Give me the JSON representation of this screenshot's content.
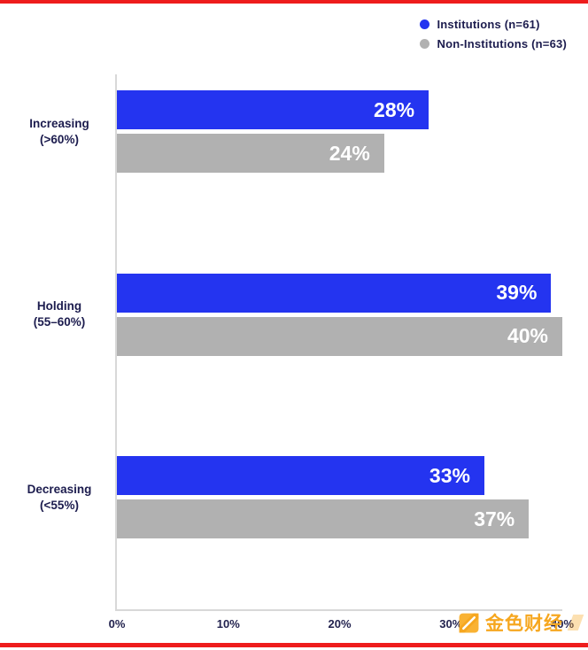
{
  "legend": {
    "items": [
      {
        "label": "Institutions (n=61)"
      },
      {
        "label": "Non-Institutions (n=63)"
      }
    ]
  },
  "chart_data": {
    "type": "bar",
    "orientation": "horizontal",
    "title": "",
    "categories": [
      "Increasing (>60%)",
      "Holding (55–60%)",
      "Decreasing (<55%)"
    ],
    "series": [
      {
        "name": "Institutions (n=61)",
        "color": "#2434f0",
        "values": [
          28,
          39,
          33
        ]
      },
      {
        "name": "Non-Institutions (n=63)",
        "color": "#b1b1b1",
        "values": [
          24,
          40,
          37
        ]
      }
    ],
    "xlim": [
      0,
      40
    ],
    "x_ticks": [
      "0%",
      "10%",
      "20%",
      "30%",
      "40%"
    ],
    "grid": false,
    "legend_position": "top-right"
  },
  "y_labels": [
    {
      "line1": "Increasing",
      "line2": "(>60%)"
    },
    {
      "line1": "Holding",
      "line2": "(55–60%)"
    },
    {
      "line1": "Decreasing",
      "line2": "(<55%)"
    }
  ],
  "value_labels": {
    "institutions": [
      "28%",
      "39%",
      "33%"
    ],
    "non_institutions": [
      "24%",
      "40%",
      "37%"
    ]
  },
  "x_ticks": [
    "0%",
    "10%",
    "20%",
    "30%",
    "40%"
  ],
  "watermark": {
    "text": "金色财经"
  },
  "colors": {
    "institutions": "#2434f0",
    "non_institutions": "#b1b1b1",
    "accent_red": "#ee1c1c",
    "watermark_orange": "#f6a71f",
    "text_navy": "#1c1c4e"
  }
}
